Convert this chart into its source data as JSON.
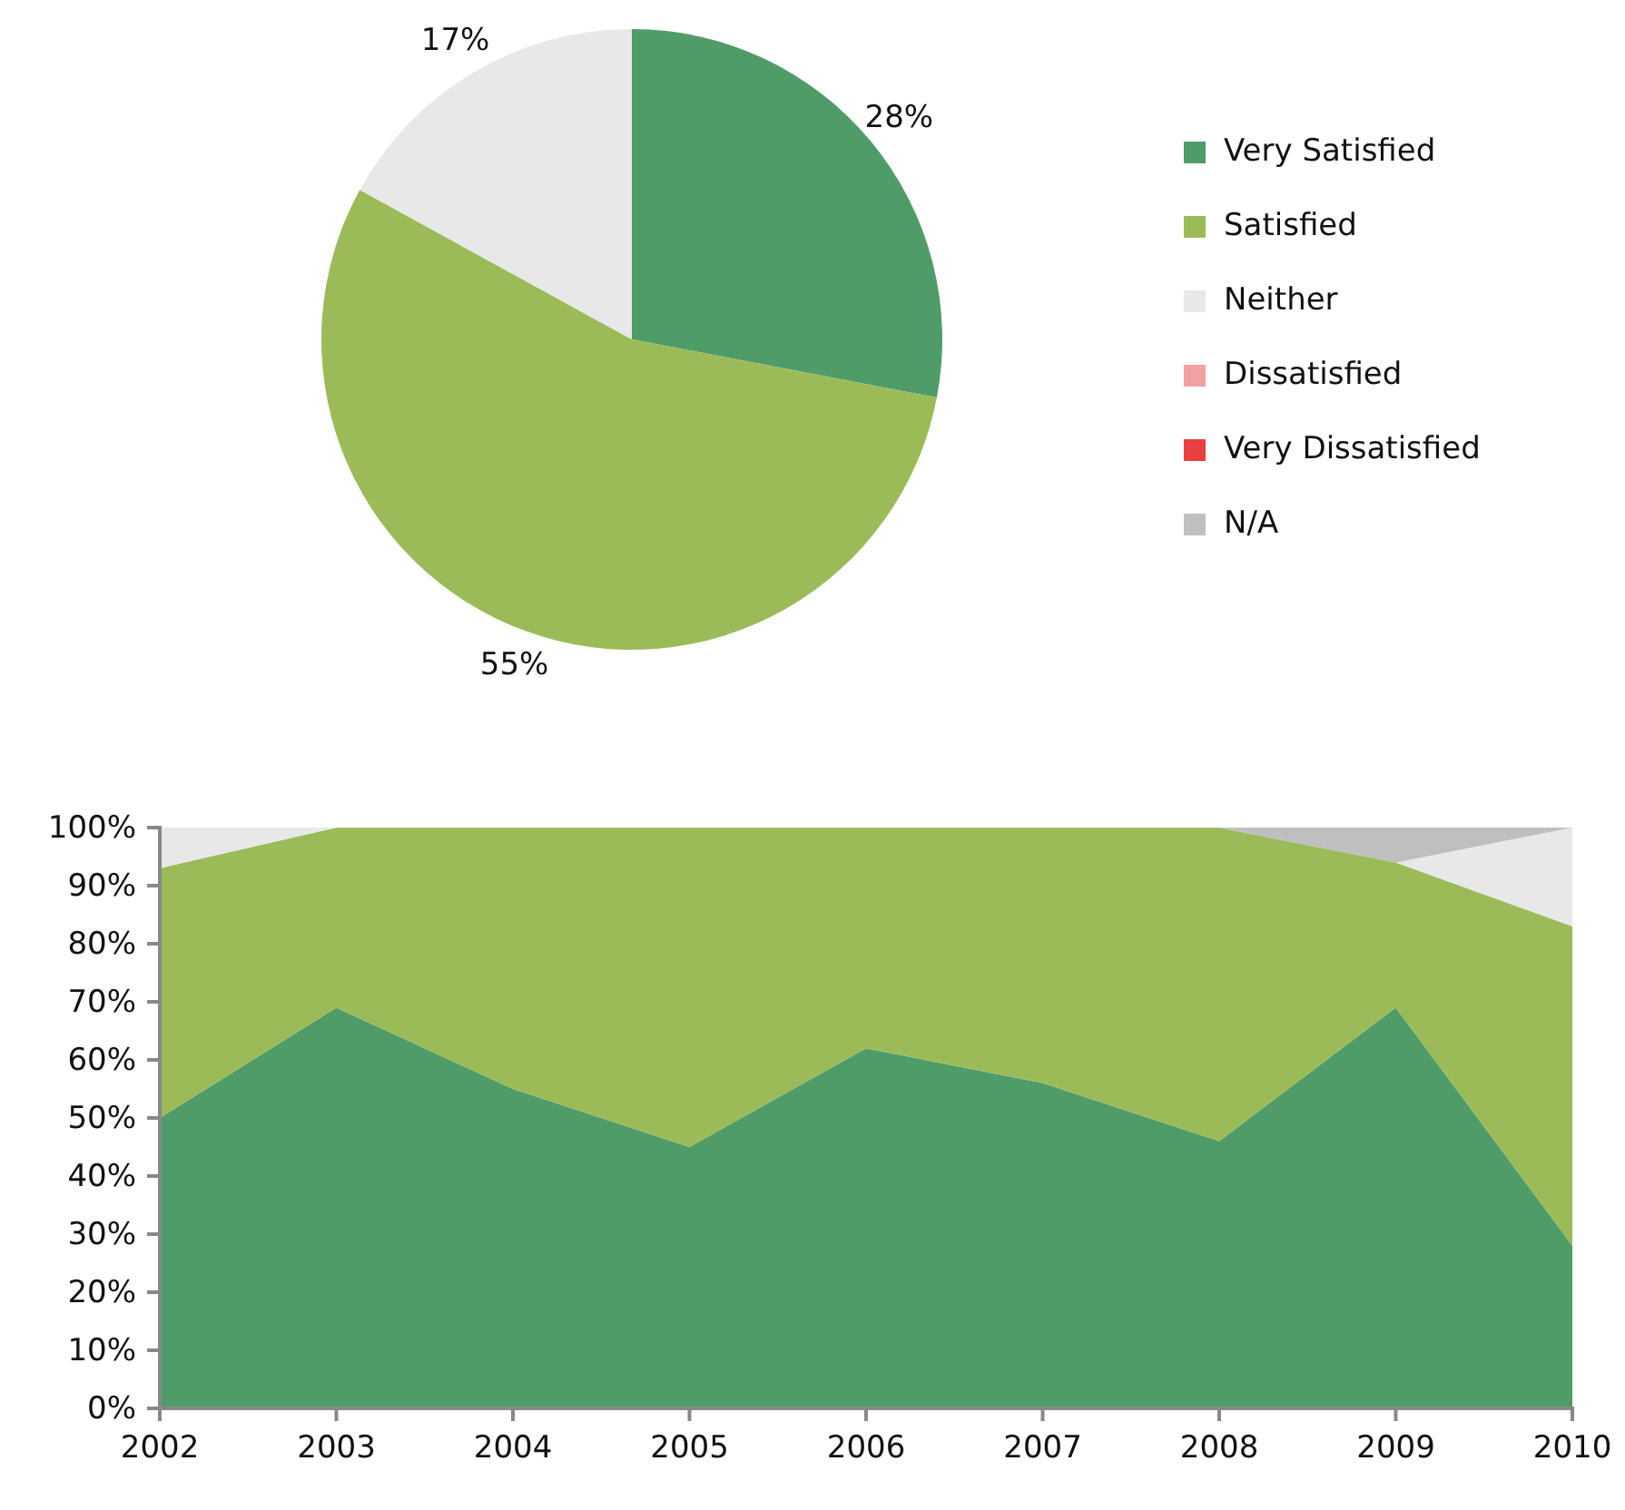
{
  "chart_data": [
    {
      "type": "pie",
      "categories": [
        "Very Satisfied",
        "Satisfied",
        "Neither",
        "Dissatisfied",
        "Very Dissatisfied",
        "N/A"
      ],
      "values": [
        28,
        55,
        17,
        0,
        0,
        0
      ],
      "colors": [
        "#4f9c69",
        "#9bbb59",
        "#e8e8e8",
        "#f2a0a0",
        "#e84040",
        "#bfbfbf"
      ],
      "value_labels": [
        "28%",
        "55%",
        "17%",
        null,
        null,
        null
      ],
      "legend": "right"
    },
    {
      "type": "area",
      "stacked": true,
      "categories": [
        "2002",
        "2003",
        "2004",
        "2005",
        "2006",
        "2007",
        "2008",
        "2009",
        "2010"
      ],
      "ylim": [
        0,
        100
      ],
      "yticks": [
        {
          "value": 0,
          "label": "0%"
        },
        {
          "value": 10,
          "label": "10%"
        },
        {
          "value": 20,
          "label": "20%"
        },
        {
          "value": 30,
          "label": "30%"
        },
        {
          "value": 40,
          "label": "40%"
        },
        {
          "value": 50,
          "label": "50%"
        },
        {
          "value": 60,
          "label": "60%"
        },
        {
          "value": 70,
          "label": "70%"
        },
        {
          "value": 80,
          "label": "80%"
        },
        {
          "value": 90,
          "label": "90%"
        },
        {
          "value": 100,
          "label": "100%"
        }
      ],
      "series": [
        {
          "color": "#4f9c69",
          "values": [
            50,
            69,
            55,
            45,
            62,
            56,
            46,
            69,
            28
          ]
        },
        {
          "color": "#9bbb59",
          "values": [
            43,
            31,
            45,
            55,
            38,
            44,
            54,
            25,
            55
          ]
        },
        {
          "color": "#e8e8e8",
          "values": [
            7,
            0,
            0,
            0,
            0,
            0,
            0,
            0,
            17
          ]
        },
        {
          "color": "#bfbfbf",
          "values": [
            0,
            0,
            0,
            0,
            0,
            0,
            0,
            6,
            0
          ]
        }
      ]
    }
  ]
}
